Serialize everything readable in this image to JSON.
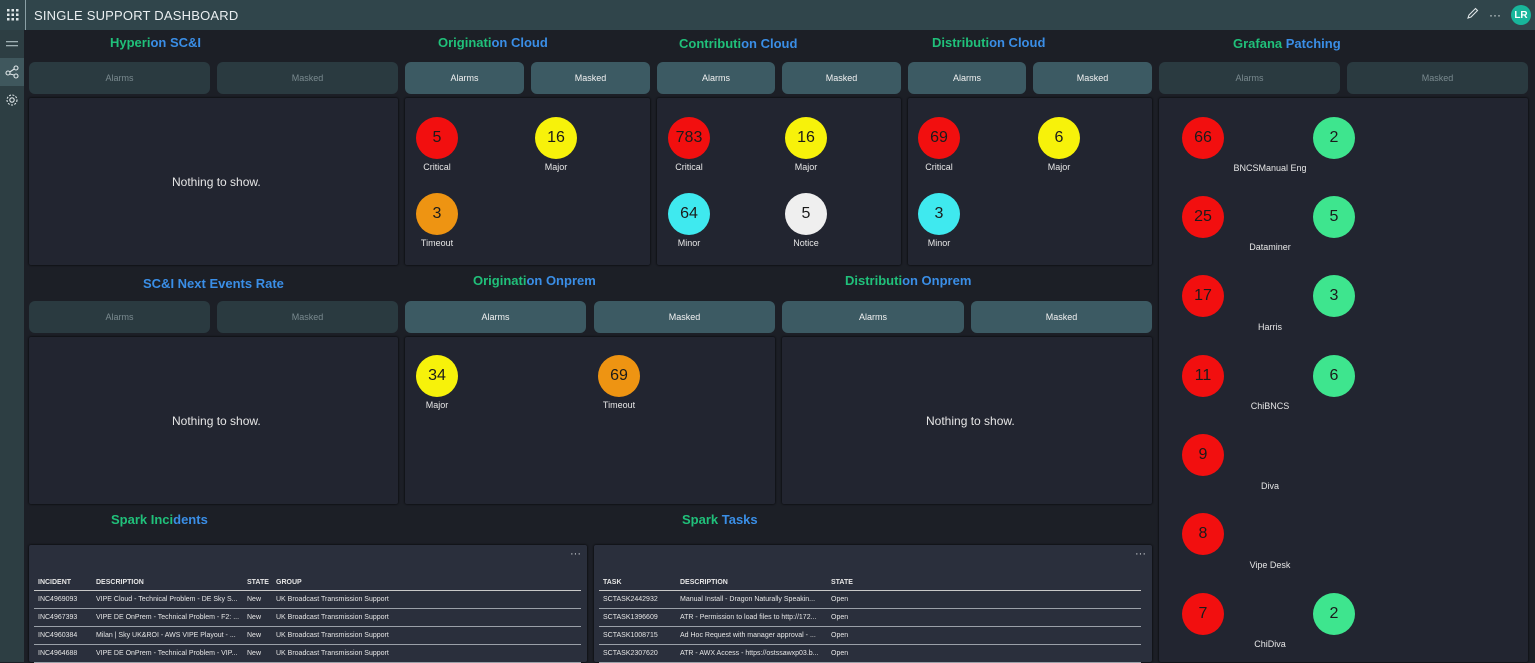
{
  "app": {
    "title": "SINGLE SUPPORT DASHBOARD",
    "user_initials": "LR"
  },
  "panels": {
    "hyperion": {
      "title_a": "Hyperi",
      "title_b": "on SC&I",
      "alarms": "Alarms",
      "masked": "Masked",
      "empty": "Nothing to show."
    },
    "orig_cloud": {
      "title_a": "Originati",
      "title_b": "on Cloud",
      "alarms": "Alarms",
      "masked": "Masked",
      "items": [
        {
          "value": "5",
          "label": "Critical"
        },
        {
          "value": "16",
          "label": "Major"
        },
        {
          "value": "3",
          "label": "Timeout"
        }
      ]
    },
    "contrib_cloud": {
      "title_a": "Contributi",
      "title_b": "on Cloud",
      "alarms": "Alarms",
      "masked": "Masked",
      "items": [
        {
          "value": "783",
          "label": "Critical"
        },
        {
          "value": "16",
          "label": "Major"
        },
        {
          "value": "64",
          "label": "Minor"
        },
        {
          "value": "5",
          "label": "Notice"
        }
      ]
    },
    "dist_cloud": {
      "title_a": "Distributi",
      "title_b": "on Cloud",
      "alarms": "Alarms",
      "masked": "Masked",
      "items": [
        {
          "value": "69",
          "label": "Critical"
        },
        {
          "value": "6",
          "label": "Major"
        },
        {
          "value": "3",
          "label": "Minor"
        }
      ]
    },
    "grafana": {
      "title_a": "Grafana ",
      "title_b": "Patching",
      "alarms": "Alarms",
      "masked": "Masked",
      "rows": [
        {
          "red": "66",
          "green": "2",
          "label": "BNCSManual Eng"
        },
        {
          "red": "25",
          "green": "5",
          "label": "Dataminer"
        },
        {
          "red": "17",
          "green": "3",
          "label": "Harris"
        },
        {
          "red": "11",
          "green": "6",
          "label": "ChiBNCS"
        },
        {
          "red": "9",
          "green": "",
          "label": "Diva"
        },
        {
          "red": "8",
          "green": "",
          "label": "Vipe Desk"
        },
        {
          "red": "7",
          "green": "2",
          "label": "ChiDiva"
        }
      ]
    },
    "scni_events": {
      "title_a": "SC&I Next ",
      "title_b": "Events Rate",
      "alarms": "Alarms",
      "masked": "Masked",
      "empty": "Nothing to show."
    },
    "orig_onprem": {
      "title_a": "Originati",
      "title_b": "on Onprem",
      "alarms": "Alarms",
      "masked": "Masked",
      "items": [
        {
          "value": "34",
          "label": "Major"
        },
        {
          "value": "69",
          "label": "Timeout"
        }
      ]
    },
    "dist_onprem": {
      "title_a": "Distributi",
      "title_b": "on Onprem",
      "alarms": "Alarms",
      "masked": "Masked",
      "empty": "Nothing to show."
    },
    "spark_incidents": {
      "title_a": "Spark Inci",
      "title_b": "dents",
      "headers": [
        "INCIDENT",
        "DESCRIPTION",
        "STATE",
        "GROUP"
      ],
      "rows": [
        [
          "INC4969093",
          "VIPE Cloud - Technical Problem - DE Sky S...",
          "New",
          "UK Broadcast Transmission Support"
        ],
        [
          "INC4967393",
          "VIPE DE OnPrem - Technical Problem - F2: ...",
          "New",
          "UK Broadcast Transmission Support"
        ],
        [
          "INC4960384",
          "Milan | Sky UK&ROI - AWS VIPE Playout - ...",
          "New",
          "UK Broadcast Transmission Support"
        ],
        [
          "INC4964688",
          "VIPE DE OnPrem - Technical Problem - VIP...",
          "New",
          "UK Broadcast Transmission Support"
        ]
      ]
    },
    "spark_tasks": {
      "title_a": "Spark ",
      "title_b": "Tasks",
      "headers": [
        "TASK",
        "DESCRIPTION",
        "STATE"
      ],
      "rows": [
        [
          "SCTASK2442932",
          "Manual Install - Dragon Naturally Speakin...",
          "Open"
        ],
        [
          "SCTASK1396609",
          "ATR - Permission to load files to http://172...",
          "Open"
        ],
        [
          "SCTASK1008715",
          "Ad Hoc Request with manager approval - ...",
          "Open"
        ],
        [
          "SCTASK2307620",
          "ATR - AWX Access - https://ostssawxp03.b...",
          "Open"
        ]
      ]
    }
  },
  "more_menu": "···",
  "colors": {
    "critical": "#f20f0f",
    "major": "#f7f20a",
    "timeout": "#ee9412",
    "minor": "#3fe9ef",
    "notice": "#efefef",
    "ok": "#3ee58e",
    "title_green": "#20c07a",
    "title_blue": "#3a8ee6"
  }
}
